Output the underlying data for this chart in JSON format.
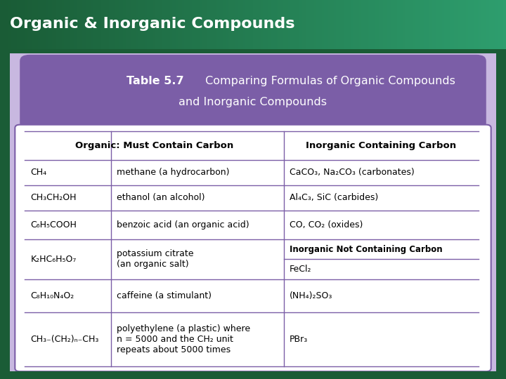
{
  "title": "Organic & Inorganic Compounds",
  "header_bg_left": "#1a5c36",
  "header_bg_right": "#2e9e6e",
  "header_text_color": "#ffffff",
  "table_header_bg": "#7b5ea7",
  "table_border_color": "#7b5ea7",
  "table_outer_bg": "#c8b8e0",
  "table_title_bold": "Table 5.7",
  "table_title_rest": " Comparing Formulas of Organic Compounds",
  "table_title_line2": "and Inorganic Compounds",
  "col_header_left": "Organic: Must Contain Carbon",
  "col_header_right": "Inorganic Containing Carbon",
  "inorganic_no_carbon_header": "Inorganic Not Containing Carbon",
  "rows_col0": [
    "CH₄",
    "CH₃CH₂OH",
    "C₆H₅COOH",
    "K₂HC₆H₅O₇",
    "C₈H₁₀N₄O₂",
    "CH₃₋(CH₂)ₙ₋CH₃"
  ],
  "rows_col1": [
    "methane (a hydrocarbon)",
    "ethanol (an alcohol)",
    "benzoic acid (an organic acid)",
    "potassium citrate\n(an organic salt)",
    "caffeine (a stimulant)",
    "polyethylene (a plastic) where\nn = 5000 and the CH₂ unit\nrepeats about 5000 times"
  ],
  "inorganic_carbon_rows": [
    "CaCO₃, Na₂CO₃ (carbonates)",
    "Al₄C₃, SiC (carbides)",
    "CO, CO₂ (oxides)"
  ],
  "inorganic_no_carbon_rows": [
    "FeCl₂",
    "(NH₄)₂SO₃",
    "PBr₃"
  ]
}
